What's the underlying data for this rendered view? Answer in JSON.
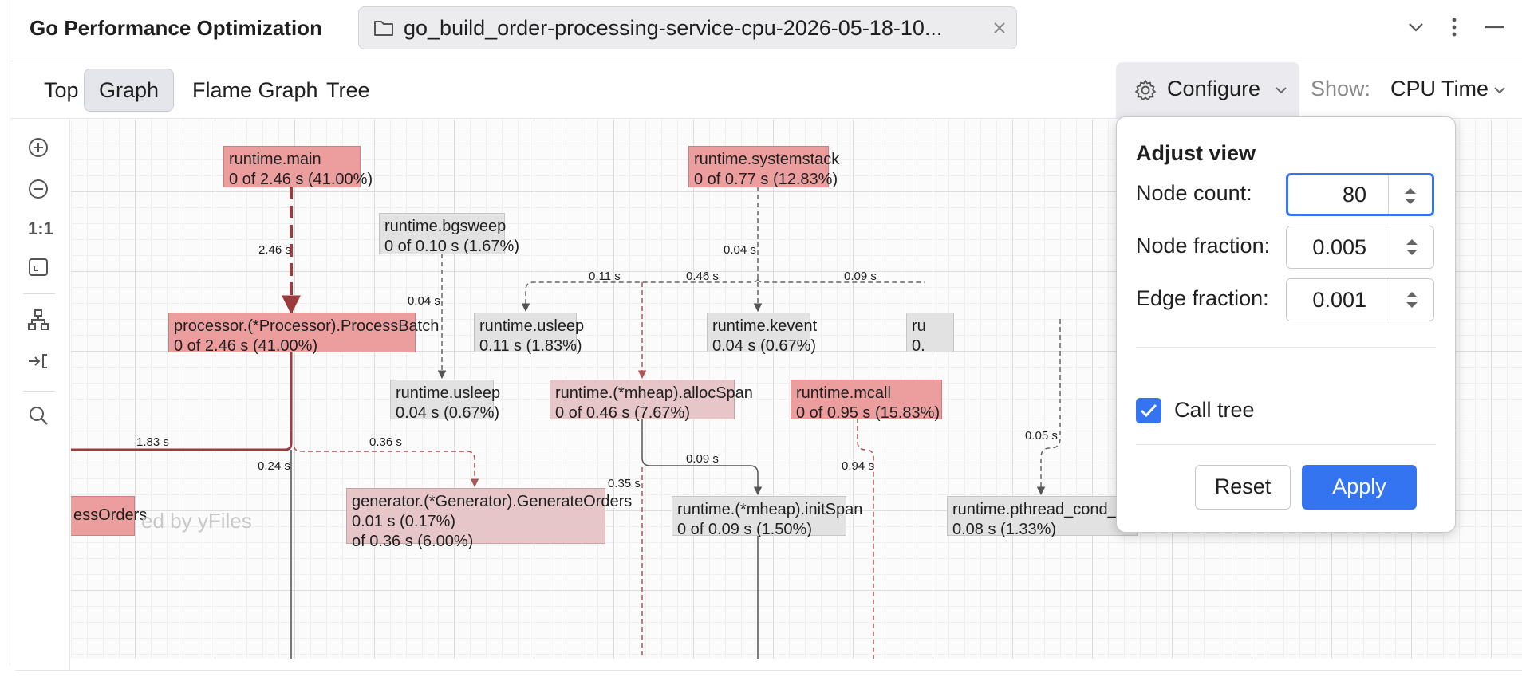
{
  "window": {
    "title": "Go Performance Optimization",
    "file_tab": "go_build_order-processing-service-cpu-2026-05-18-10..."
  },
  "view_tabs": [
    "Top",
    "Graph",
    "Flame Graph",
    "Tree"
  ],
  "active_view_tab": "Graph",
  "toolbar": {
    "configure_label": "Configure",
    "show_label": "Show:",
    "show_value": "CPU Time"
  },
  "left_tools": {
    "actual_size_label": "1:1"
  },
  "graph": {
    "watermark": "ed by yFiles",
    "nodes": [
      {
        "name": "runtime.main",
        "stats": "0 of 2.46 s (41.00%)"
      },
      {
        "name": "runtime.systemstack",
        "stats": "0 of 0.77 s (12.83%)"
      },
      {
        "name": "runtime.bgsweep",
        "stats": "0 of 0.10 s (1.67%)"
      },
      {
        "name": "processor.(*Processor).ProcessBatch",
        "stats": "0 of 2.46 s (41.00%)"
      },
      {
        "name": "runtime.usleep",
        "stats": "0.11 s (1.83%)"
      },
      {
        "name": "runtime.kevent",
        "stats": "0.04 s (0.67%)"
      },
      {
        "name": "ru",
        "stats": "0."
      },
      {
        "name": "runtime.usleep",
        "stats": "0.04 s (0.67%)"
      },
      {
        "name": "runtime.(*mheap).allocSpan",
        "stats": "0 of 0.46 s (7.67%)"
      },
      {
        "name": "runtime.mcall",
        "stats": "0 of 0.95 s (15.83%)"
      },
      {
        "name": "essOrders",
        "stats": ""
      },
      {
        "name": "generator.(*Generator).GenerateOrders",
        "stats": "0.01 s (0.17%)",
        "stats2": "of 0.36 s (6.00%)"
      },
      {
        "name": "runtime.(*mheap).initSpan",
        "stats": "0 of 0.09 s (1.50%)"
      },
      {
        "name": "runtime.pthread_cond_signal",
        "stats": "0.08 s (1.33%)"
      }
    ],
    "edge_labels": [
      "2.46 s",
      "0.04 s",
      "0.04 s",
      "0.11 s",
      "0.46 s",
      "0.09 s",
      "1.83 s",
      "0.36 s",
      "0.24 s",
      "0.09 s",
      "0.35 s",
      "0.94 s",
      "0.05 s"
    ]
  },
  "popup": {
    "title": "Adjust view",
    "node_count_label": "Node count:",
    "node_count_value": "80",
    "node_fraction_label": "Node fraction:",
    "node_fraction_value": "0.005",
    "edge_fraction_label": "Edge fraction:",
    "edge_fraction_value": "0.001",
    "call_tree_label": "Call tree",
    "call_tree_checked": true,
    "reset_label": "Reset",
    "apply_label": "Apply"
  },
  "colors": {
    "accent": "#3574f0",
    "hot_node": "#ec9e9e",
    "warm_node": "#e6c6c8",
    "cold_node": "#e2e2e2",
    "hot_edge": "#9b3b3b"
  }
}
